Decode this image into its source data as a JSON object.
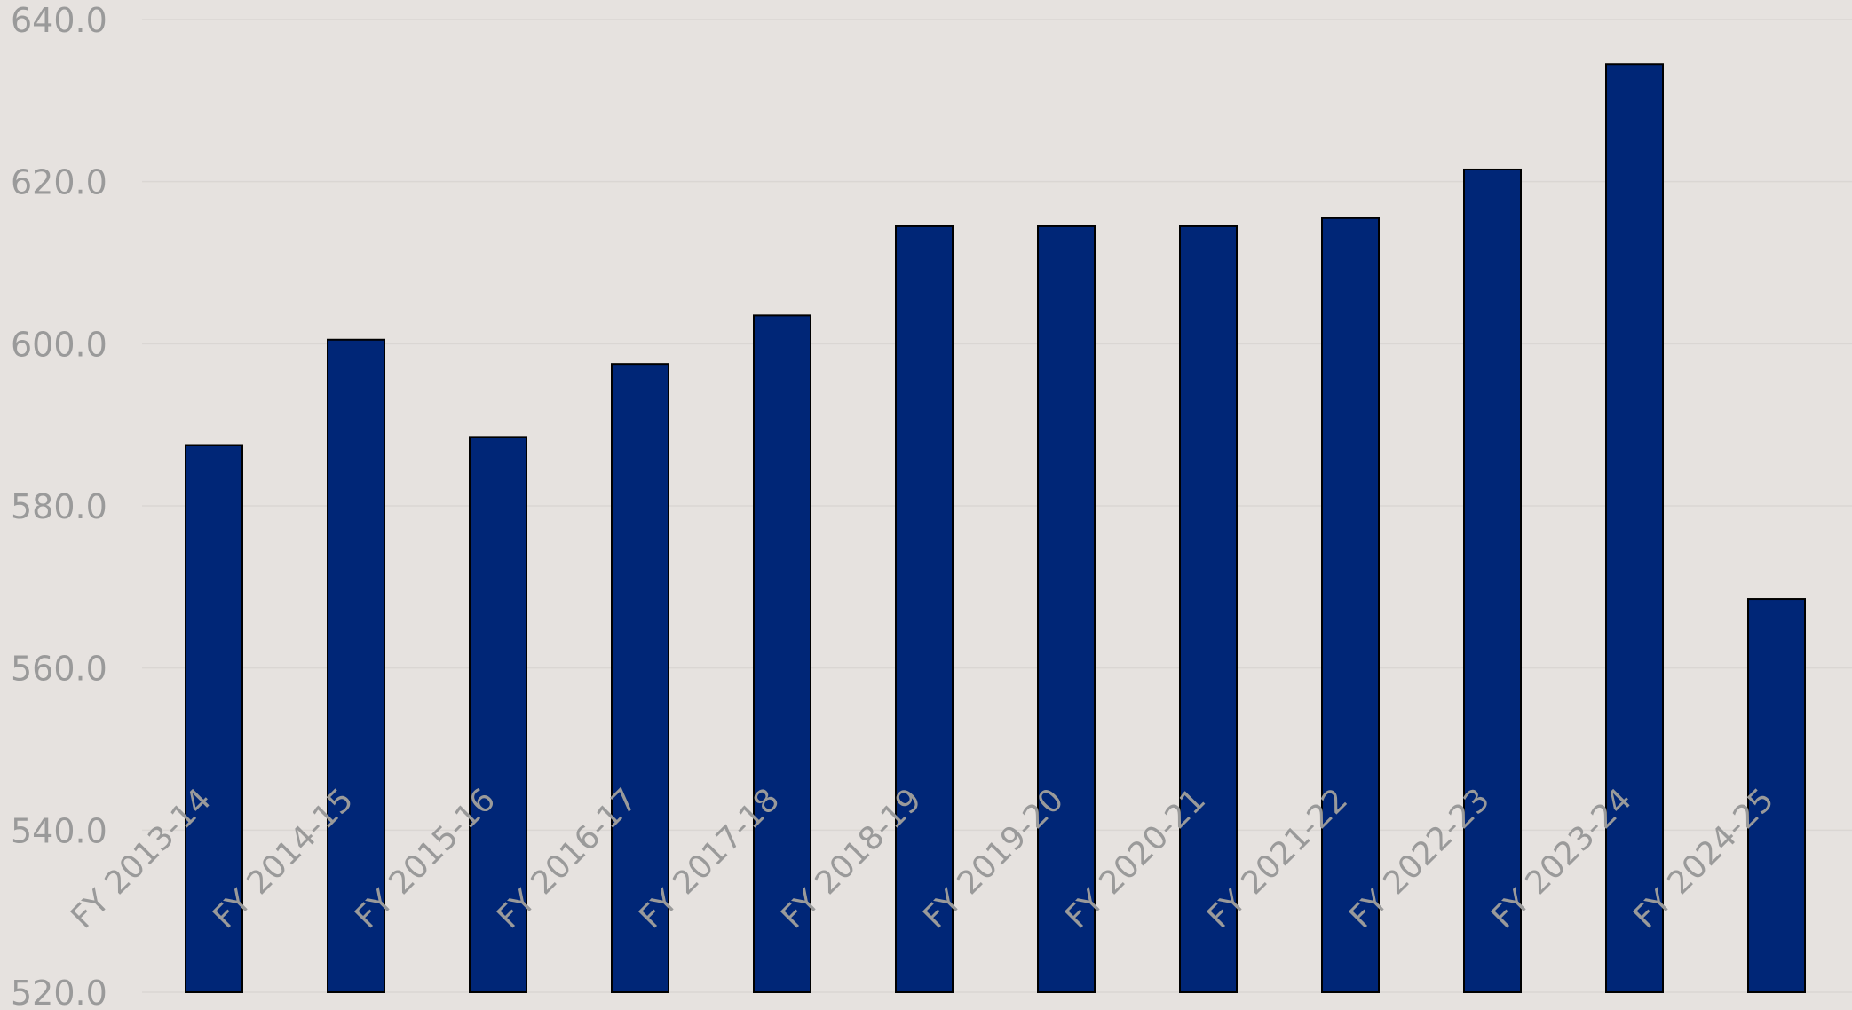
{
  "colors": {
    "background": "#E6E2DF",
    "bar_fill": "#002677",
    "bar_stroke": "#000000",
    "grid": "#DAD6D3",
    "tick_text": "#9A9A9A"
  },
  "chart_data": {
    "type": "bar",
    "title": "",
    "xlabel": "",
    "ylabel": "",
    "categories": [
      "FY 2013-14",
      "FY 2014-15",
      "FY 2015-16",
      "FY 2016-17",
      "FY 2017-18",
      "FY 2018-19",
      "FY 2019-20",
      "FY 2020-21",
      "FY 2021-22",
      "FY 2022-23",
      "FY 2023-24",
      "FY 2024-25"
    ],
    "values": [
      587.5,
      600.5,
      588.5,
      597.5,
      603.5,
      614.5,
      614.5,
      614.5,
      615.5,
      621.5,
      634.5,
      568.5
    ],
    "ylim": [
      520,
      640
    ],
    "yticks": [
      "520.0",
      "540.0",
      "560.0",
      "580.0",
      "600.0",
      "620.0",
      "640.0"
    ],
    "grid": true,
    "legend": false
  }
}
